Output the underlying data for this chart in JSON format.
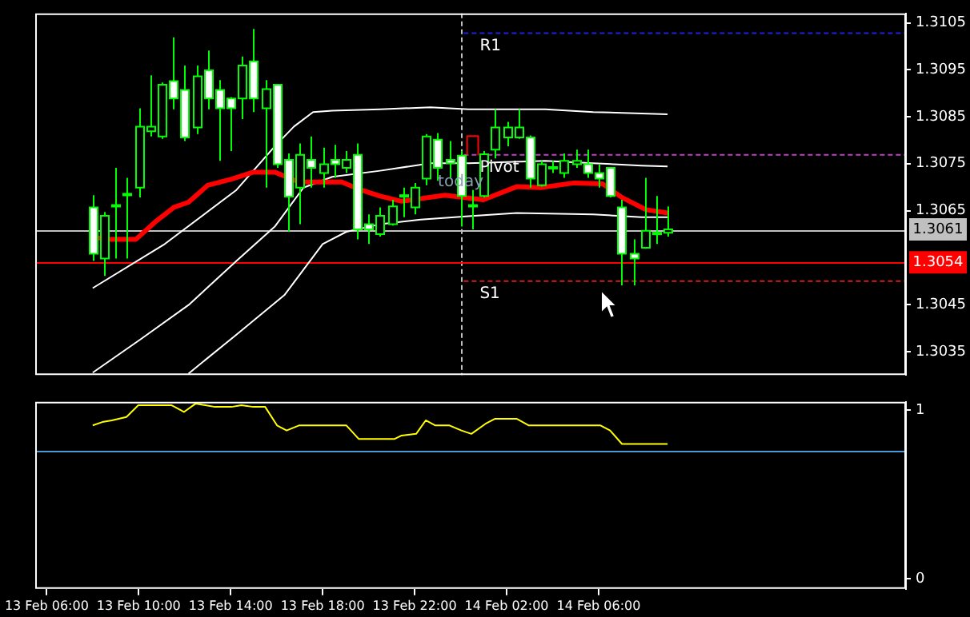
{
  "chart_data": [
    {
      "type": "candlestick",
      "x": [
        "--02-13T08:00",
        "--02-13T08:30",
        "--02-13T09:00",
        "--02-13T09:30",
        "--02-13T10:00",
        "--02-13T10:30",
        "--02-13T11:00",
        "--02-13T11:30",
        "--02-13T12:00",
        "--02-13T12:30",
        "--02-13T13:00",
        "--02-13T13:30",
        "--02-13T14:00",
        "--02-13T14:30",
        "--02-13T15:00",
        "--02-13T15:30",
        "--02-13T16:00",
        "--02-13T16:30",
        "--02-13T17:00",
        "--02-13T17:30",
        "--02-13T18:00",
        "--02-13T18:30",
        "--02-13T19:00",
        "--02-13T19:30",
        "--02-13T20:00",
        "--02-13T20:30",
        "--02-13T21:00",
        "--02-13T21:30",
        "--02-13T22:00",
        "--02-13T22:30",
        "--02-13T23:00",
        "--02-13T23:30",
        "--02-14T00:00",
        "--02-14T00:30",
        "--02-14T01:00",
        "--02-14T01:30",
        "--02-14T02:00",
        "--02-14T02:30",
        "--02-14T03:00",
        "--02-14T03:30",
        "--02-14T04:00",
        "--02-14T04:30",
        "--02-14T05:00",
        "--02-14T05:30",
        "--02-14T06:00",
        "--02-14T06:30",
        "--02-14T07:00",
        "--02-14T07:30",
        "--02-14T08:00",
        "--02-14T08:30",
        "--02-14T09:00"
      ],
      "ohlc": [
        [
          1.30657,
          1.30683,
          1.30543,
          1.30558
        ],
        [
          1.30548,
          1.30647,
          1.30511,
          1.30639
        ],
        [
          1.30659,
          1.30741,
          1.30548,
          1.30662
        ],
        [
          1.30683,
          1.3072,
          1.30548,
          1.30686
        ],
        [
          1.30699,
          1.30868,
          1.30678,
          1.30829
        ],
        [
          1.30819,
          1.30938,
          1.30808,
          1.30829
        ],
        [
          1.30808,
          1.30923,
          1.30803,
          1.30918
        ],
        [
          1.30926,
          1.31019,
          1.30866,
          1.30889
        ],
        [
          1.30907,
          1.30959,
          1.30798,
          1.30806
        ],
        [
          1.30827,
          1.30959,
          1.30813,
          1.30936
        ],
        [
          1.30949,
          1.30991,
          1.30866,
          1.30889
        ],
        [
          1.30907,
          1.30928,
          1.30756,
          1.30868
        ],
        [
          1.30889,
          1.30892,
          1.30777,
          1.30868
        ],
        [
          1.30889,
          1.30978,
          1.30845,
          1.30959
        ],
        [
          1.30968,
          1.31037,
          1.3086,
          1.30889
        ],
        [
          1.30868,
          1.30928,
          1.30699,
          1.30909
        ],
        [
          1.30918,
          1.3092,
          1.30741,
          1.30749
        ],
        [
          1.30758,
          1.30772,
          1.30605,
          1.3068
        ],
        [
          1.30699,
          1.30793,
          1.30621,
          1.30769
        ],
        [
          1.30758,
          1.30808,
          1.30699,
          1.30741
        ],
        [
          1.3073,
          1.30784,
          1.30699,
          1.30749
        ],
        [
          1.30758,
          1.3079,
          1.3072,
          1.30749
        ],
        [
          1.30741,
          1.30777,
          1.3073,
          1.30758
        ],
        [
          1.30769,
          1.30793,
          1.30589,
          1.3061
        ],
        [
          1.30621,
          1.30642,
          1.30579,
          1.3061
        ],
        [
          1.306,
          1.30657,
          1.30595,
          1.30639
        ],
        [
          1.30621,
          1.30673,
          1.30618,
          1.30659
        ],
        [
          1.30681,
          1.30699,
          1.30636,
          1.30683
        ],
        [
          1.30657,
          1.30709,
          1.30642,
          1.30699
        ],
        [
          1.30718,
          1.30813,
          1.30704,
          1.30808
        ],
        [
          1.30801,
          1.30815,
          1.30714,
          1.30741
        ],
        [
          1.30758,
          1.30798,
          1.3072,
          1.30751
        ],
        [
          1.30767,
          1.30777,
          1.30616,
          1.30681
        ],
        [
          1.30659,
          1.30694,
          1.3061,
          1.30662
        ],
        [
          1.30681,
          1.30777,
          1.30678,
          1.3077
        ],
        [
          1.3078,
          1.30866,
          1.30761,
          1.30827
        ],
        [
          1.30806,
          1.30839,
          1.30787,
          1.30827
        ],
        [
          1.30806,
          1.30866,
          1.30803,
          1.30827
        ],
        [
          1.30806,
          1.3081,
          1.30699,
          1.30718
        ],
        [
          1.30704,
          1.30756,
          1.30701,
          1.30749
        ],
        [
          1.30741,
          1.30756,
          1.3073,
          1.30743
        ],
        [
          1.3073,
          1.30772,
          1.3072,
          1.30756
        ],
        [
          1.30749,
          1.3078,
          1.30741,
          1.30756
        ],
        [
          1.30749,
          1.3078,
          1.3072,
          1.3073
        ],
        [
          1.3073,
          1.30749,
          1.30699,
          1.30718
        ],
        [
          1.30741,
          1.30743,
          1.30678,
          1.30681
        ],
        [
          1.30657,
          1.30673,
          1.30491,
          1.30558
        ],
        [
          1.30558,
          1.30589,
          1.30491,
          1.30548
        ],
        [
          1.30571,
          1.3072,
          1.30569,
          1.30607
        ],
        [
          1.306,
          1.30681,
          1.30579,
          1.30603
        ],
        [
          1.30603,
          1.30659,
          1.30595,
          1.3061
        ]
      ],
      "color": "#00ff00",
      "colors": [
        "#ffffff",
        "#000000",
        "#000000",
        "#000000",
        "#000000",
        "#000000",
        "#000000",
        "#ffffff",
        "#ffffff",
        "#000000",
        "#ffffff",
        "#ffffff",
        "#ffffff",
        "#000000",
        "#ffffff",
        "#000000",
        "#ffffff",
        "#ffffff",
        "#000000",
        "#ffffff",
        "#000000",
        "#ffffff",
        "#000000",
        "#ffffff",
        "#ffffff",
        "#000000",
        "#000000",
        "#000000",
        "#000000",
        "#000000",
        "#ffffff",
        "#ffffff",
        "#ffffff",
        "#000000",
        "#000000",
        "#000000",
        "#000000",
        "#000000",
        "#ffffff",
        "#000000",
        "#000000",
        "#000000",
        "#000000",
        "#ffffff",
        "#ffffff",
        "#ffffff",
        "#ffffff",
        "#ffffff",
        "#000000",
        "#000000",
        "#000000"
      ],
      "series": [
        {
          "type": "line",
          "color": "#ff0000",
          "x": [
            "--02-13T08:00",
            "--02-13T08:30",
            "--02-13T09:53",
            "--02-13T10:43",
            "--02-13T11:32",
            "--02-13T12:10",
            "--02-13T13:00",
            "--02-13T14:02",
            "--02-13T14:59",
            "--02-13T15:55",
            "--02-13T16:58",
            "--02-13T18:50",
            "--02-13T19:40",
            "--02-13T20:30",
            "--02-13T21:26",
            "--02-13T23:19",
            "--02-14T00:59",
            "--02-14T02:26",
            "--02-14T03:29",
            "--02-14T04:56",
            "--02-14T06:11",
            "--02-14T07:01",
            "--02-14T08:04",
            "--02-14T09:00"
          ],
          "values": [
            1.30595,
            1.30589,
            1.30589,
            1.30626,
            1.30657,
            1.30668,
            1.30704,
            1.30717,
            1.30732,
            1.30732,
            1.30711,
            1.30711,
            1.30694,
            1.30681,
            1.3067,
            1.30683,
            1.30673,
            1.30701,
            1.30699,
            1.30709,
            1.30707,
            1.30678,
            1.30652,
            1.30645
          ]
        },
        {
          "type": "line",
          "color": "#ffffff",
          "x": [
            "--02-13T08:00",
            "--02-13T11:08",
            "--02-13T14:15",
            "--02-13T15:55",
            "--02-13T16:45",
            "--02-13T17:35",
            "--02-13T18:25",
            "--02-13T20:30",
            "--02-13T22:41",
            "--02-14T00:21",
            "--02-14T03:41",
            "--02-14T05:46",
            "--02-14T07:52",
            "--02-14T09:00"
          ],
          "values": [
            1.30485,
            1.30579,
            1.30694,
            1.30787,
            1.30829,
            1.3086,
            1.30863,
            1.30866,
            1.3087,
            1.30866,
            1.30866,
            1.3086,
            1.30857,
            1.30855
          ]
        },
        {
          "type": "line",
          "color": "#ffffff",
          "x": [
            "--02-13T08:00",
            "--02-13T10:05",
            "--02-13T12:10",
            "--02-13T14:15",
            "--02-13T15:55",
            "--02-13T17:10",
            "--02-13T18:25",
            "--02-13T20:30",
            "--02-13T22:41",
            "--02-14T00:21",
            "--02-14T03:41",
            "--02-14T05:46",
            "--02-14T07:52",
            "--02-14T09:00"
          ],
          "values": [
            1.30305,
            1.30376,
            1.30449,
            1.30543,
            1.30616,
            1.30699,
            1.30722,
            1.30735,
            1.30751,
            1.30751,
            1.30756,
            1.30751,
            1.30746,
            1.30744
          ]
        },
        {
          "type": "line",
          "color": "#ffffff",
          "x": [
            "--02-13T12:10",
            "--02-13T14:15",
            "--02-13T16:20",
            "--02-13T18:00",
            "--02-13T19:02",
            "--02-13T20:30",
            "--02-13T22:16",
            "--02-14T00:21",
            "--02-14T02:26",
            "--02-14T05:46",
            "--02-14T07:52",
            "--02-14T09:00"
          ],
          "values": [
            1.30303,
            1.30386,
            1.3047,
            1.30579,
            1.30605,
            1.30621,
            1.30631,
            1.30638,
            1.30645,
            1.30642,
            1.30636,
            1.30636
          ]
        },
        {
          "type": "line",
          "color": "#ff0000",
          "x": [
            "--02-14T00:17",
            "--02-14T00:17",
            "--02-14T00:46",
            "--02-14T00:46"
          ],
          "values": [
            1.30769,
            1.30809,
            1.30809,
            1.30769
          ]
        },
        {
          "type": "line",
          "name": "R1",
          "color": "#2020e0",
          "line_style": "dashed",
          "x": [
            "--02-14T00:08",
            "--02-14T19:22"
          ],
          "values": [
            1.31028,
            1.31028
          ]
        },
        {
          "type": "line",
          "name": "Pivot",
          "color": "#c040c0",
          "line_style": "dashed",
          "x": [
            "--02-14T00:08",
            "--02-14T19:22"
          ],
          "values": [
            1.30769,
            1.30769
          ]
        },
        {
          "type": "line",
          "name": "S1",
          "color": "#d02020",
          "line_style": "dashed",
          "x": [
            "--02-14T00:08",
            "--02-14T19:22"
          ],
          "values": [
            1.305,
            1.305
          ]
        }
      ],
      "ref_lines": [
        {
          "axis": "x",
          "value": "--02-14T00:00",
          "color": "#c0c0c0",
          "line_style": "dashed"
        },
        {
          "axis": "y",
          "value": 1.3061,
          "label": "1.3061",
          "color": "#c0c0c0"
        },
        {
          "axis": "y",
          "value": 1.3054,
          "label": "1.3054",
          "color": "#ff0000"
        }
      ],
      "annotations": [
        {
          "text": "today",
          "x": "--02-14T00:00",
          "y": 1.3071
        }
      ],
      "xlim": [
        "--02-13T05:30",
        "--02-14T19:22"
      ],
      "ylim": [
        1.303,
        1.3107
      ],
      "yticks": [
        1.3035,
        1.3045,
        1.3065,
        1.3075,
        1.3085,
        1.3095,
        1.3105
      ],
      "tick_labels": "y"
    },
    {
      "type": "line",
      "series": [
        {
          "color": "#ffff00",
          "x": [
            "--02-13T08:00",
            "--02-13T08:25",
            "--02-13T08:50",
            "--02-13T09:28",
            "--02-13T09:59",
            "--02-13T11:26",
            "--02-13T11:58",
            "--02-13T12:29",
            "--02-13T12:54",
            "--02-13T13:19",
            "--02-13T14:02",
            "--02-13T14:28",
            "--02-13T14:59",
            "--02-13T15:30",
            "--02-13T16:01",
            "--02-13T16:26",
            "--02-13T16:58",
            "--02-13T19:02",
            "--02-13T19:34",
            "--02-13T21:08",
            "--02-13T21:26",
            "--02-13T22:04",
            "--02-13T22:29",
            "--02-13T22:54",
            "--02-13T23:31",
            "--02-14T00:02",
            "--02-14T00:28",
            "--02-14T01:05",
            "--02-14T01:30",
            "--02-14T02:26",
            "--02-14T02:58",
            "--02-14T06:05",
            "--02-14T06:30",
            "--02-14T07:01",
            "--02-14T07:39",
            "--02-14T07:45",
            "--02-14T09:00"
          ],
          "values": [
            0.91,
            0.93,
            0.94,
            0.96,
            1.03,
            1.03,
            0.99,
            1.04,
            1.03,
            1.02,
            1.02,
            1.03,
            1.02,
            1.02,
            0.91,
            0.88,
            0.91,
            0.91,
            0.83,
            0.83,
            0.85,
            0.86,
            0.94,
            0.91,
            0.91,
            0.88,
            0.86,
            0.92,
            0.95,
            0.95,
            0.91,
            0.91,
            0.88,
            0.8,
            0.8,
            0.8,
            0.8
          ]
        }
      ],
      "ref_lines": [
        {
          "axis": "y",
          "value": 0.76,
          "color": "#4a9ad8"
        }
      ],
      "xlim": [
        "--02-13T05:30",
        "--02-14T19:22"
      ],
      "xticks": [
        {
          "value": "--02-13T06:00",
          "label": "13 Feb 06:00"
        },
        {
          "value": "--02-13T10:00",
          "label": "13 Feb 10:00"
        },
        {
          "value": "--02-13T14:00",
          "label": "13 Feb 14:00"
        },
        {
          "value": "--02-13T18:00",
          "label": "13 Feb 18:00"
        },
        {
          "value": "--02-13T22:00",
          "label": "13 Feb 22:00"
        },
        {
          "value": "--02-14T02:00",
          "label": "14 Feb 02:00"
        },
        {
          "value": "--02-14T06:00",
          "label": "14 Feb 06:00"
        }
      ],
      "ylim": [
        -0.06,
        1.05
      ],
      "yticks": [
        0,
        1
      ]
    }
  ]
}
